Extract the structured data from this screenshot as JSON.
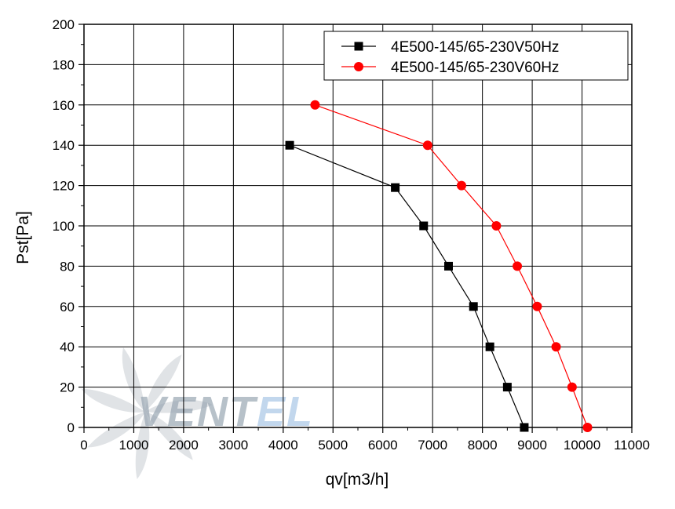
{
  "chart_data": {
    "type": "line",
    "xlabel": "qv[m3/h]",
    "ylabel": "Pst[Pa]",
    "xlim": [
      0,
      11000
    ],
    "ylim": [
      0,
      200
    ],
    "x_ticks": [
      0,
      1000,
      2000,
      3000,
      4000,
      5000,
      6000,
      7000,
      8000,
      9000,
      10000,
      11000
    ],
    "y_ticks": [
      0,
      20,
      40,
      60,
      80,
      100,
      120,
      140,
      160,
      180,
      200
    ],
    "grid": true,
    "legend_position": "top-right",
    "series": [
      {
        "name": "4E500-145/65-230V50Hz",
        "marker": "square",
        "color": "#000000",
        "points": [
          [
            4130,
            140
          ],
          [
            6250,
            119
          ],
          [
            6820,
            100
          ],
          [
            7320,
            80
          ],
          [
            7820,
            60
          ],
          [
            8150,
            40
          ],
          [
            8500,
            20
          ],
          [
            8840,
            0
          ]
        ]
      },
      {
        "name": "4E500-145/65-230V60Hz",
        "marker": "circle",
        "color": "#ff0000",
        "points": [
          [
            4640,
            160
          ],
          [
            6900,
            140
          ],
          [
            7580,
            120
          ],
          [
            8280,
            100
          ],
          [
            8700,
            80
          ],
          [
            9100,
            60
          ],
          [
            9480,
            40
          ],
          [
            9800,
            20
          ],
          [
            10110,
            0
          ]
        ]
      }
    ]
  },
  "watermark": {
    "text": "VENTEL",
    "logo_icon": "fan-blades-icon",
    "colors": {
      "text_dark": "#9aa7b3",
      "text_accent": "#a9c7e6",
      "fan": "#c8cdd2"
    }
  }
}
